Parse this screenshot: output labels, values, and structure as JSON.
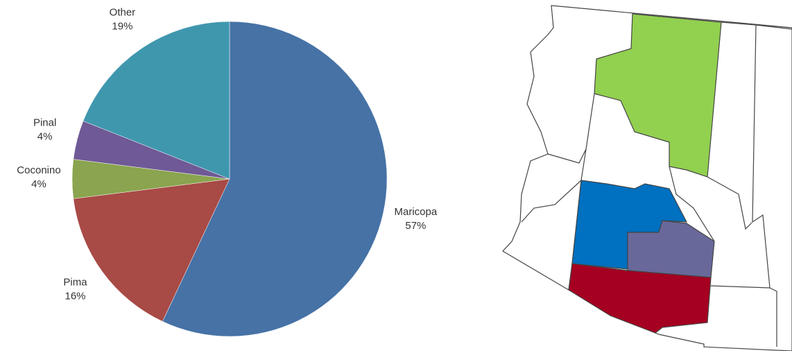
{
  "chart_data": {
    "type": "pie",
    "categories": [
      "Maricopa",
      "Pima",
      "Coconino",
      "Pinal",
      "Other"
    ],
    "values": [
      57,
      16,
      4,
      4,
      19
    ],
    "value_labels": [
      "57%",
      "16%",
      "4%",
      "4%",
      "19%"
    ],
    "colors": [
      "#4672a6",
      "#a84a46",
      "#8aa44f",
      "#6f5996",
      "#3f97ae"
    ]
  }
}
